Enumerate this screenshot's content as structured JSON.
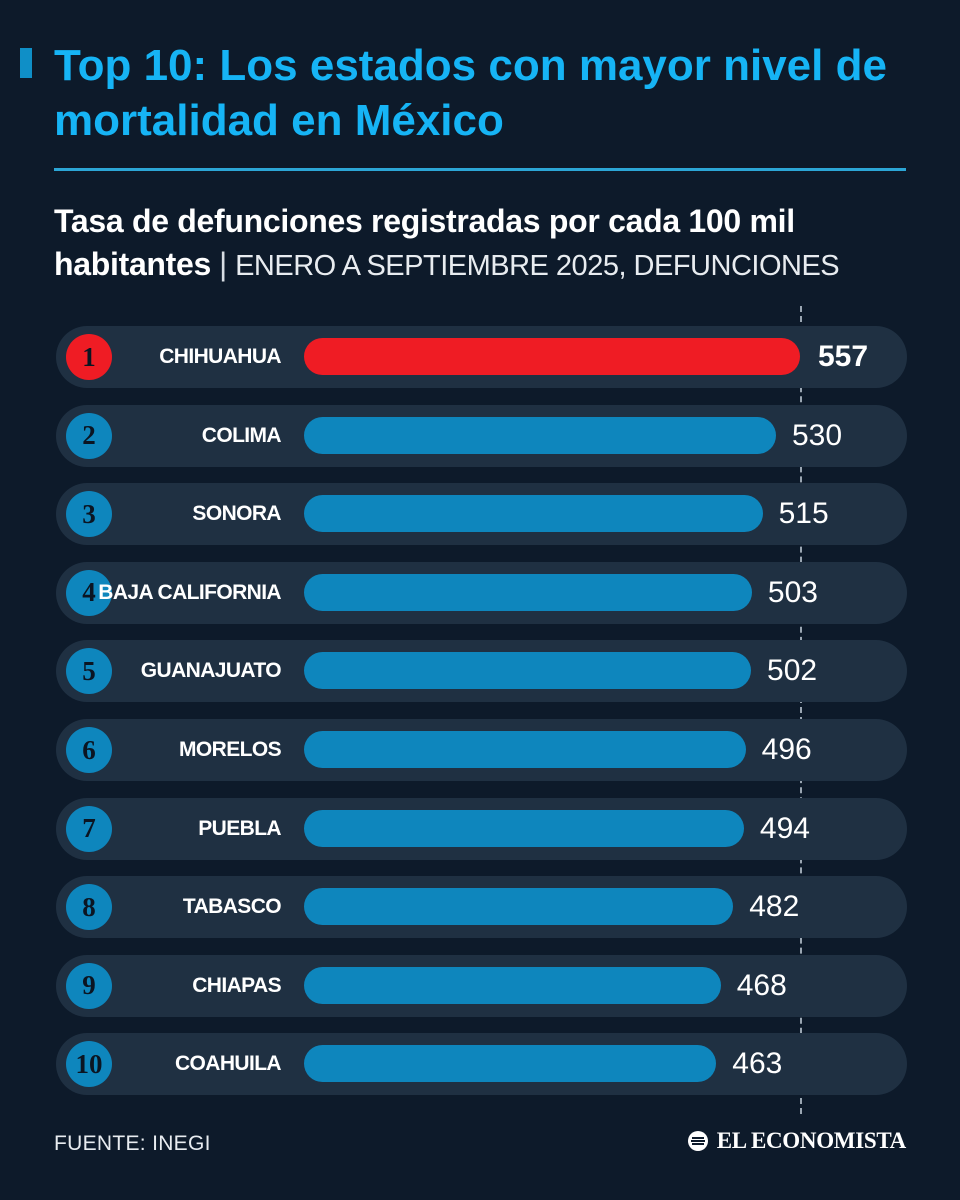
{
  "header": {
    "title": "Top 10: Los estados con mayor nivel de mortalidad en México",
    "subtitle_bold": "Tasa de defunciones registradas por cada 100 mil habitantes",
    "subtitle_separator": "|",
    "subtitle_period": "ENERO A SEPTIEMBRE 2025, DEFUNCIONES"
  },
  "colors": {
    "background": "#0d1a2a",
    "title": "#16b4f5",
    "bar": "#0e86bd",
    "highlight": "#ef1c24",
    "row_background": "#1f3042"
  },
  "chart_data": {
    "type": "bar",
    "orientation": "horizontal",
    "categories": [
      "CHIHUAHUA",
      "COLIMA",
      "SONORA",
      "BAJA CALIFORNIA",
      "GUANAJUATO",
      "MORELOS",
      "PUEBLA",
      "TABASCO",
      "CHIAPAS",
      "COAHUILA"
    ],
    "ranks": [
      "1",
      "2",
      "3",
      "4",
      "5",
      "6",
      "7",
      "8",
      "9",
      "10"
    ],
    "values": [
      557,
      530,
      515,
      503,
      502,
      496,
      494,
      482,
      468,
      463
    ],
    "highlight_index": 0,
    "reference_line": 557,
    "title": "Tasa de defunciones registradas por cada 100 mil habitantes",
    "xlabel": "",
    "ylabel": "",
    "grid": false,
    "legend": "none"
  },
  "footer": {
    "source": "FUENTE: INEGI",
    "brand": "EL ECONOMISTA",
    "brand_icon": "el-economista-logo-icon"
  }
}
